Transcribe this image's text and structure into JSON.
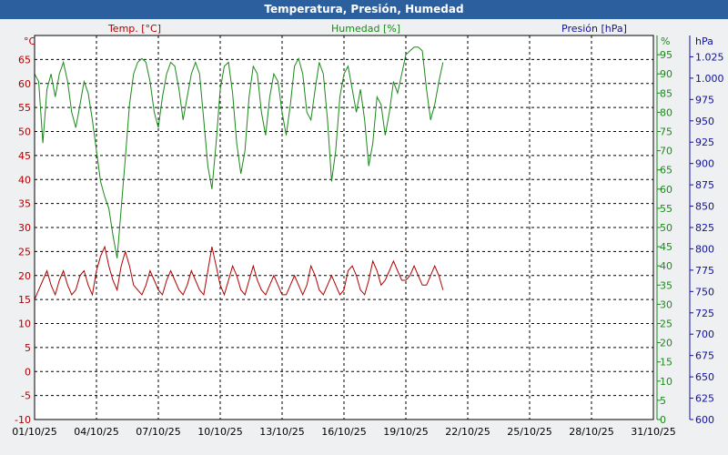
{
  "window": {
    "title": "Temperatura, Presión, Humedad"
  },
  "chart_data": {
    "type": "line",
    "title": "Temperatura, Presión, Humedad",
    "grid": true,
    "x": {
      "start": "01/10/25",
      "end": "01/11/25",
      "unit": "days",
      "tick_labels": [
        "01/10/25",
        "04/10/25",
        "07/10/25",
        "10/10/25",
        "13/10/25",
        "16/10/25",
        "19/10/25",
        "22/10/25",
        "25/10/25",
        "28/10/25",
        "31/10/25"
      ]
    },
    "axes": {
      "temperature": {
        "header": "Temp. [°C]",
        "unit": "°C",
        "range": [
          -10,
          70
        ],
        "ticks": [
          65,
          60,
          55,
          50,
          45,
          40,
          35,
          30,
          25,
          20,
          15,
          10,
          5,
          0,
          -5,
          -10
        ],
        "color": "#b00000",
        "side": "left"
      },
      "humidity": {
        "header": "Humedad [%]",
        "unit": "%",
        "range": [
          0,
          100
        ],
        "ticks": [
          95,
          90,
          85,
          80,
          75,
          70,
          65,
          60,
          55,
          50,
          45,
          40,
          35,
          30,
          25,
          20,
          15,
          10,
          5,
          0
        ],
        "color": "#1a8a1a",
        "side": "right"
      },
      "pressure": {
        "header": "Presión [hPa]",
        "unit": "hPa",
        "range": [
          600,
          1050
        ],
        "ticks": [
          1025,
          1000,
          975,
          950,
          925,
          900,
          875,
          850,
          825,
          800,
          775,
          750,
          725,
          700,
          675,
          650,
          625,
          600
        ],
        "color": "#1010a0",
        "side": "right"
      }
    },
    "series": [
      {
        "name": "Temp. [°C]",
        "axis": "temperature",
        "color": "#b00000",
        "points": [
          [
            0.0,
            15
          ],
          [
            0.2,
            17
          ],
          [
            0.4,
            19
          ],
          [
            0.6,
            21
          ],
          [
            0.8,
            18
          ],
          [
            1.0,
            16
          ],
          [
            1.2,
            19
          ],
          [
            1.4,
            21
          ],
          [
            1.6,
            18
          ],
          [
            1.8,
            16
          ],
          [
            2.0,
            17
          ],
          [
            2.2,
            20
          ],
          [
            2.4,
            21
          ],
          [
            2.6,
            18
          ],
          [
            2.8,
            16
          ],
          [
            3.0,
            21
          ],
          [
            3.2,
            24
          ],
          [
            3.4,
            26
          ],
          [
            3.6,
            22
          ],
          [
            3.8,
            19
          ],
          [
            4.0,
            17
          ],
          [
            4.2,
            22
          ],
          [
            4.4,
            25
          ],
          [
            4.6,
            22
          ],
          [
            4.8,
            18
          ],
          [
            5.0,
            17
          ],
          [
            5.2,
            16
          ],
          [
            5.4,
            18
          ],
          [
            5.6,
            21
          ],
          [
            5.8,
            19
          ],
          [
            6.0,
            17
          ],
          [
            6.2,
            16
          ],
          [
            6.4,
            19
          ],
          [
            6.6,
            21
          ],
          [
            6.8,
            19
          ],
          [
            7.0,
            17
          ],
          [
            7.2,
            16
          ],
          [
            7.4,
            18
          ],
          [
            7.6,
            21
          ],
          [
            7.8,
            19
          ],
          [
            8.0,
            17
          ],
          [
            8.2,
            16
          ],
          [
            8.4,
            21
          ],
          [
            8.6,
            26
          ],
          [
            8.8,
            22
          ],
          [
            9.0,
            18
          ],
          [
            9.2,
            16
          ],
          [
            9.4,
            19
          ],
          [
            9.6,
            22
          ],
          [
            9.8,
            20
          ],
          [
            10.0,
            17
          ],
          [
            10.2,
            16
          ],
          [
            10.4,
            19
          ],
          [
            10.6,
            22
          ],
          [
            10.8,
            19
          ],
          [
            11.0,
            17
          ],
          [
            11.2,
            16
          ],
          [
            11.4,
            18
          ],
          [
            11.6,
            20
          ],
          [
            11.8,
            18
          ],
          [
            12.0,
            16
          ],
          [
            12.2,
            16
          ],
          [
            12.4,
            18
          ],
          [
            12.6,
            20
          ],
          [
            12.8,
            18
          ],
          [
            13.0,
            16
          ],
          [
            13.2,
            18
          ],
          [
            13.4,
            22
          ],
          [
            13.6,
            20
          ],
          [
            13.8,
            17
          ],
          [
            14.0,
            16
          ],
          [
            14.2,
            18
          ],
          [
            14.4,
            20
          ],
          [
            14.6,
            18
          ],
          [
            14.8,
            16
          ],
          [
            15.0,
            17
          ],
          [
            15.2,
            21
          ],
          [
            15.4,
            22
          ],
          [
            15.6,
            20
          ],
          [
            15.8,
            17
          ],
          [
            16.0,
            16
          ],
          [
            16.2,
            19
          ],
          [
            16.4,
            23
          ],
          [
            16.6,
            21
          ],
          [
            16.8,
            18
          ],
          [
            17.0,
            19
          ],
          [
            17.2,
            21
          ],
          [
            17.4,
            23
          ],
          [
            17.6,
            21
          ],
          [
            17.8,
            19
          ],
          [
            18.0,
            19
          ],
          [
            18.2,
            20
          ],
          [
            18.4,
            22
          ],
          [
            18.6,
            20
          ],
          [
            18.8,
            18
          ],
          [
            19.0,
            18
          ],
          [
            19.2,
            20
          ],
          [
            19.4,
            22
          ],
          [
            19.6,
            20
          ],
          [
            19.8,
            17
          ]
        ]
      },
      {
        "name": "Humedad [%]",
        "axis": "humidity",
        "color": "#1a8a1a",
        "points": [
          [
            0.0,
            90
          ],
          [
            0.2,
            88
          ],
          [
            0.4,
            72
          ],
          [
            0.6,
            86
          ],
          [
            0.8,
            90
          ],
          [
            1.0,
            84
          ],
          [
            1.2,
            90
          ],
          [
            1.4,
            93
          ],
          [
            1.6,
            88
          ],
          [
            1.8,
            80
          ],
          [
            2.0,
            76
          ],
          [
            2.2,
            82
          ],
          [
            2.4,
            88
          ],
          [
            2.6,
            85
          ],
          [
            2.8,
            78
          ],
          [
            3.0,
            70
          ],
          [
            3.2,
            62
          ],
          [
            3.4,
            58
          ],
          [
            3.6,
            55
          ],
          [
            3.8,
            48
          ],
          [
            4.0,
            42
          ],
          [
            4.2,
            55
          ],
          [
            4.4,
            68
          ],
          [
            4.6,
            82
          ],
          [
            4.8,
            90
          ],
          [
            5.0,
            93
          ],
          [
            5.2,
            94
          ],
          [
            5.4,
            93
          ],
          [
            5.6,
            88
          ],
          [
            5.8,
            80
          ],
          [
            6.0,
            76
          ],
          [
            6.2,
            84
          ],
          [
            6.4,
            90
          ],
          [
            6.6,
            93
          ],
          [
            6.8,
            92
          ],
          [
            7.0,
            86
          ],
          [
            7.2,
            78
          ],
          [
            7.4,
            84
          ],
          [
            7.6,
            90
          ],
          [
            7.8,
            93
          ],
          [
            8.0,
            90
          ],
          [
            8.2,
            78
          ],
          [
            8.4,
            66
          ],
          [
            8.6,
            60
          ],
          [
            8.8,
            72
          ],
          [
            9.0,
            86
          ],
          [
            9.2,
            92
          ],
          [
            9.4,
            93
          ],
          [
            9.6,
            85
          ],
          [
            9.8,
            72
          ],
          [
            10.0,
            64
          ],
          [
            10.2,
            70
          ],
          [
            10.4,
            84
          ],
          [
            10.6,
            92
          ],
          [
            10.8,
            90
          ],
          [
            11.0,
            80
          ],
          [
            11.2,
            74
          ],
          [
            11.4,
            84
          ],
          [
            11.6,
            90
          ],
          [
            11.8,
            88
          ],
          [
            12.0,
            80
          ],
          [
            12.2,
            74
          ],
          [
            12.4,
            82
          ],
          [
            12.6,
            92
          ],
          [
            12.8,
            94
          ],
          [
            13.0,
            90
          ],
          [
            13.2,
            80
          ],
          [
            13.4,
            78
          ],
          [
            13.6,
            86
          ],
          [
            13.8,
            93
          ],
          [
            14.0,
            90
          ],
          [
            14.2,
            78
          ],
          [
            14.4,
            62
          ],
          [
            14.6,
            70
          ],
          [
            14.8,
            84
          ],
          [
            15.0,
            90
          ],
          [
            15.2,
            92
          ],
          [
            15.4,
            86
          ],
          [
            15.6,
            80
          ],
          [
            15.8,
            86
          ],
          [
            16.0,
            78
          ],
          [
            16.2,
            66
          ],
          [
            16.4,
            72
          ],
          [
            16.6,
            84
          ],
          [
            16.8,
            82
          ],
          [
            17.0,
            74
          ],
          [
            17.2,
            80
          ],
          [
            17.4,
            88
          ],
          [
            17.6,
            85
          ],
          [
            17.8,
            90
          ],
          [
            18.0,
            95
          ],
          [
            18.2,
            96
          ],
          [
            18.4,
            97
          ],
          [
            18.6,
            97
          ],
          [
            18.8,
            96
          ],
          [
            19.0,
            86
          ],
          [
            19.2,
            78
          ],
          [
            19.4,
            82
          ],
          [
            19.6,
            88
          ],
          [
            19.8,
            93
          ]
        ]
      }
    ]
  }
}
